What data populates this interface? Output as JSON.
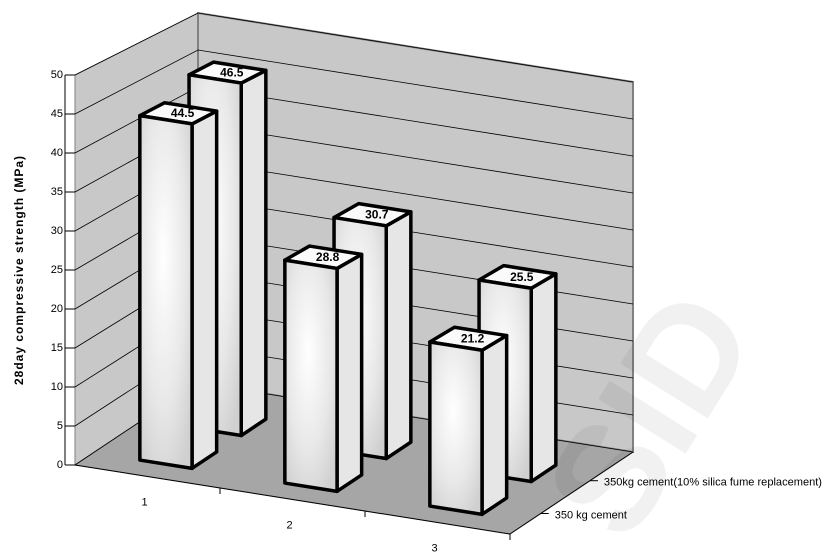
{
  "chart_data": {
    "type": "bar3d",
    "y_label": "28day compressive strength  (MPa)",
    "categories": [
      "1",
      "2",
      "3"
    ],
    "series": [
      {
        "name": "350 kg cement",
        "color": "#f2f2f2",
        "values": [
          44.5,
          28.8,
          21.2
        ]
      },
      {
        "name": "350kg cement(10% silica fume replacement)",
        "color": "#f2f2f2",
        "values": [
          46.5,
          30.7,
          25.5
        ]
      }
    ],
    "ylim": [
      0,
      50
    ],
    "yticks": [
      0,
      5,
      10,
      15,
      20,
      25,
      30,
      35,
      40,
      45,
      50
    ],
    "grid": true,
    "watermark": "SID"
  }
}
